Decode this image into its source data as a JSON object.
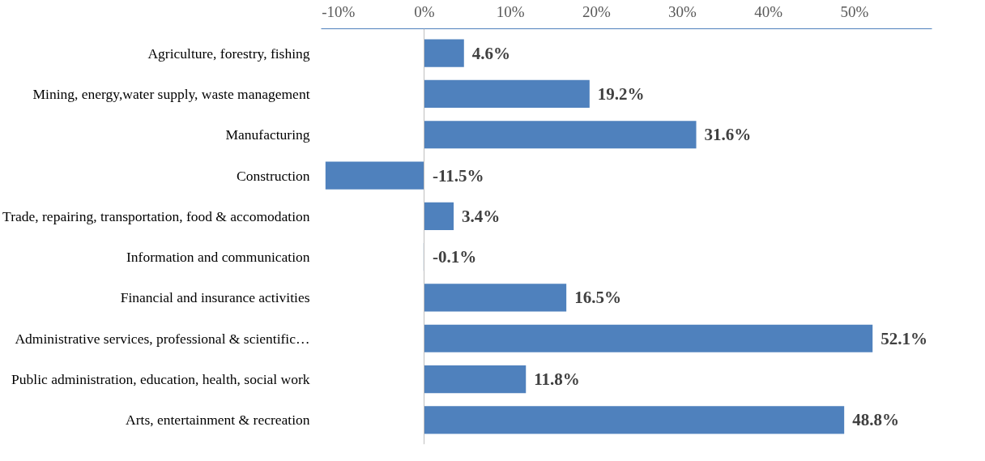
{
  "chart_data": {
    "type": "bar",
    "orientation": "horizontal",
    "categories": [
      "Agriculture, forestry, fishing",
      "Mining, energy,water supply, waste management",
      "Manufacturing",
      "Construction",
      "Trade, repairing, transportation, food & accomodation",
      "Information and communication",
      "Financial and insurance activities",
      "Administrative services, professional & scientific…",
      "Public administration, education, health, social work",
      "Arts, entertainment & recreation"
    ],
    "values": [
      4.6,
      19.2,
      31.6,
      -11.5,
      3.4,
      -0.1,
      16.5,
      52.1,
      11.8,
      48.8
    ],
    "value_labels": [
      "4.6%",
      "19.2%",
      "31.6%",
      "-11.5%",
      "3.4%",
      "-0.1%",
      "16.5%",
      "52.1%",
      "11.8%",
      "48.8%"
    ],
    "color": "#4f81bd",
    "x2lim": [
      -12,
      59
    ],
    "x2ticks": [
      {
        "value": -10,
        "label": "-10%"
      },
      {
        "value": 0,
        "label": "0%"
      },
      {
        "value": 10,
        "label": "10%"
      },
      {
        "value": 20,
        "label": "20%"
      },
      {
        "value": 30,
        "label": "30%"
      },
      {
        "value": 40,
        "label": "40%"
      },
      {
        "value": 50,
        "label": "50%"
      }
    ],
    "grid": false
  }
}
